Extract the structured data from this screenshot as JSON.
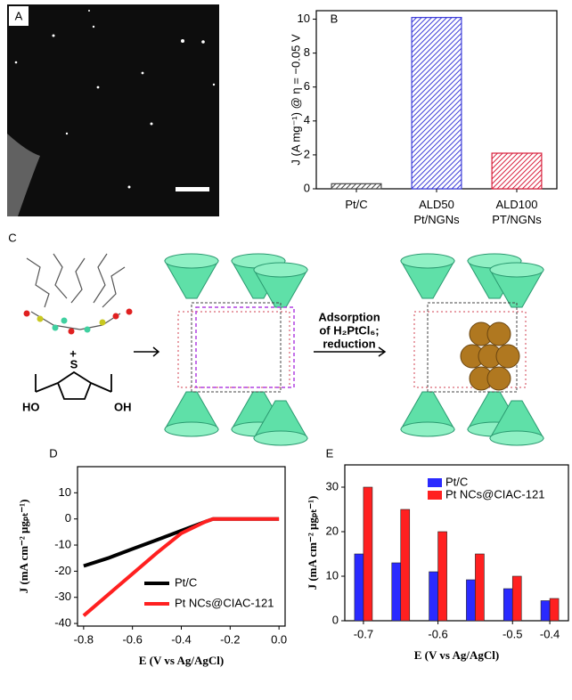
{
  "panels": [
    "A",
    "B",
    "C",
    "D",
    "E"
  ],
  "diagram": {
    "molecule_labels": [
      "HO",
      "S",
      "OH"
    ],
    "plus": "+",
    "arrow_label": [
      "Adsorption",
      "of H₂PtCl₆;",
      "reduction"
    ]
  },
  "chart_data": [
    {
      "type": "bar",
      "ylabel": "J (A mg⁻¹) @ η = −0.05 V",
      "categories": [
        "Pt/C",
        "ALD50 Pt/NGNs",
        "ALD100 PT/NGNs"
      ],
      "values": [
        0.3,
        10.1,
        2.1
      ],
      "colors": [
        "#444444",
        "#3b3bd8",
        "#d8203c"
      ],
      "ylim": [
        0,
        10.5
      ],
      "yticks": [
        0,
        2,
        4,
        6,
        8,
        10
      ]
    },
    {
      "type": "line",
      "xlabel": "E (V vs Ag/AgCl)",
      "ylabel": "J (mA cm⁻² μgₚₜ⁻¹)",
      "x": [
        -0.8,
        -0.7,
        -0.6,
        -0.5,
        -0.4,
        -0.3,
        -0.27,
        -0.2,
        -0.1,
        0.0
      ],
      "series": [
        {
          "name": "Pt/C",
          "color": "#000000",
          "values": [
            -18,
            -15,
            -11.5,
            -8,
            -4.5,
            -1,
            0,
            0,
            0,
            0
          ]
        },
        {
          "name": "Pt NCs@CIAC-121",
          "color": "#ff2020",
          "values": [
            -37,
            -29,
            -21,
            -13,
            -5.5,
            -1,
            0,
            0,
            0,
            0
          ]
        }
      ],
      "xlim": [
        -0.825,
        0.025
      ],
      "xticks": [
        -0.8,
        -0.6,
        -0.4,
        -0.2,
        {
          "value": 0,
          "label": "0.0"
        }
      ],
      "ylim": [
        -41,
        20
      ],
      "yticks": [
        -40,
        -30,
        -20,
        -10,
        0,
        10
      ],
      "legend": "lower right"
    },
    {
      "type": "grouped-bar",
      "xlabel": "E (V vs Ag/AgCl)",
      "ylabel": "J (mA cm⁻² μgₚₜ⁻¹)",
      "categories": [
        "-0.7",
        null,
        "-0.6",
        null,
        "-0.5",
        "-0.4"
      ],
      "series": [
        {
          "name": "Pt/C",
          "color": "#2a2aff",
          "values": [
            15,
            13,
            11,
            9.2,
            7.2,
            4.5
          ]
        },
        {
          "name": "Pt NCs@CIAC-121",
          "color": "#ff2020",
          "values": [
            30,
            25,
            20,
            15,
            10,
            5
          ]
        }
      ],
      "ylim": [
        0,
        35
      ],
      "yticks": [
        0,
        10,
        20,
        30
      ],
      "legend": "upper right"
    }
  ]
}
